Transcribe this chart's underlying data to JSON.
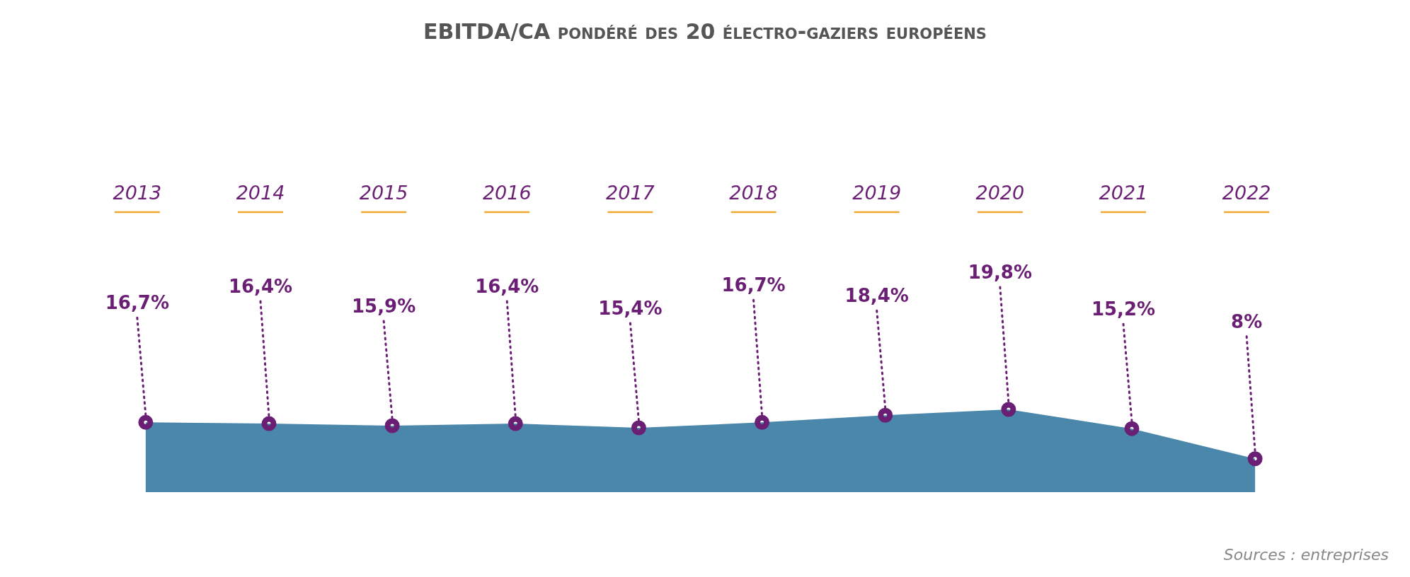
{
  "chart_data": {
    "type": "area",
    "title": "EBITDA/CA pondéré des 20 électro-gaziers européens",
    "categories": [
      "2013",
      "2014",
      "2015",
      "2016",
      "2017",
      "2018",
      "2019",
      "2020",
      "2021",
      "2022"
    ],
    "series": [
      {
        "color": "#4a87aa",
        "values": [
          16.7,
          16.4,
          15.9,
          16.4,
          15.4,
          16.7,
          18.4,
          19.8,
          15.2,
          8
        ],
        "value_labels": [
          "16,7%",
          "16,4%",
          "15,9%",
          "16,4%",
          "15,4%",
          "16,7%",
          "18,4%",
          "19,8%",
          "15,2%",
          "8%"
        ]
      }
    ],
    "tick_labels": "x",
    "annotations": [
      "Sources : entreprises"
    ]
  }
}
